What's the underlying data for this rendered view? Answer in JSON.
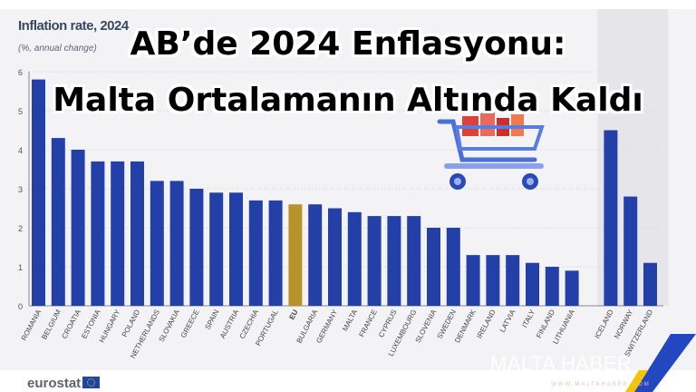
{
  "overlay": {
    "line1": "AB’de 2024 Enflasyonu:",
    "line2": "Malta Ortalamanın Altında Kaldı"
  },
  "footer": {
    "logo": "eurostat",
    "watermark": "MALTA HABER",
    "watermark_sub": "WWW.MALTAHABER.COM"
  },
  "chart_data": {
    "type": "bar",
    "title": "Inflation rate, 2024",
    "subtitle": "(%, annual change)",
    "categories": [
      "ROMANIA",
      "BELGIUM",
      "CROATIA",
      "ESTONIA",
      "HUNGARY",
      "POLAND",
      "NETHERLANDS",
      "SLOVAKIA",
      "GREECE",
      "SPAIN",
      "AUSTRIA",
      "CZECHIA",
      "PORTUGAL",
      "EU",
      "BULGARIA",
      "GERMANY",
      "MALTA",
      "FRANCE",
      "CYPRUS",
      "LUXEMBOURG",
      "SLOVENIA",
      "SWEDEN",
      "DENMARK",
      "IRELAND",
      "LATVIA",
      "ITALY",
      "FINLAND",
      "LITHUANIA",
      "ICELAND",
      "NORWAY",
      "SWITZERLAND"
    ],
    "values": [
      5.8,
      4.3,
      4.0,
      3.7,
      3.7,
      3.7,
      3.2,
      3.2,
      3.0,
      2.9,
      2.9,
      2.7,
      2.7,
      2.6,
      2.6,
      2.5,
      2.4,
      2.3,
      2.3,
      2.3,
      2.0,
      2.0,
      1.3,
      1.3,
      1.3,
      1.1,
      1.0,
      0.9,
      4.5,
      2.8,
      1.1
    ],
    "highlight": {
      "EU": "#b8922a"
    },
    "bar_color": "#2340a8",
    "ylim": [
      0,
      6
    ],
    "yticks": [
      "0",
      "1",
      "2",
      "3",
      "4",
      "5",
      "6"
    ],
    "grid": true,
    "xlabel": "",
    "ylabel": ""
  }
}
